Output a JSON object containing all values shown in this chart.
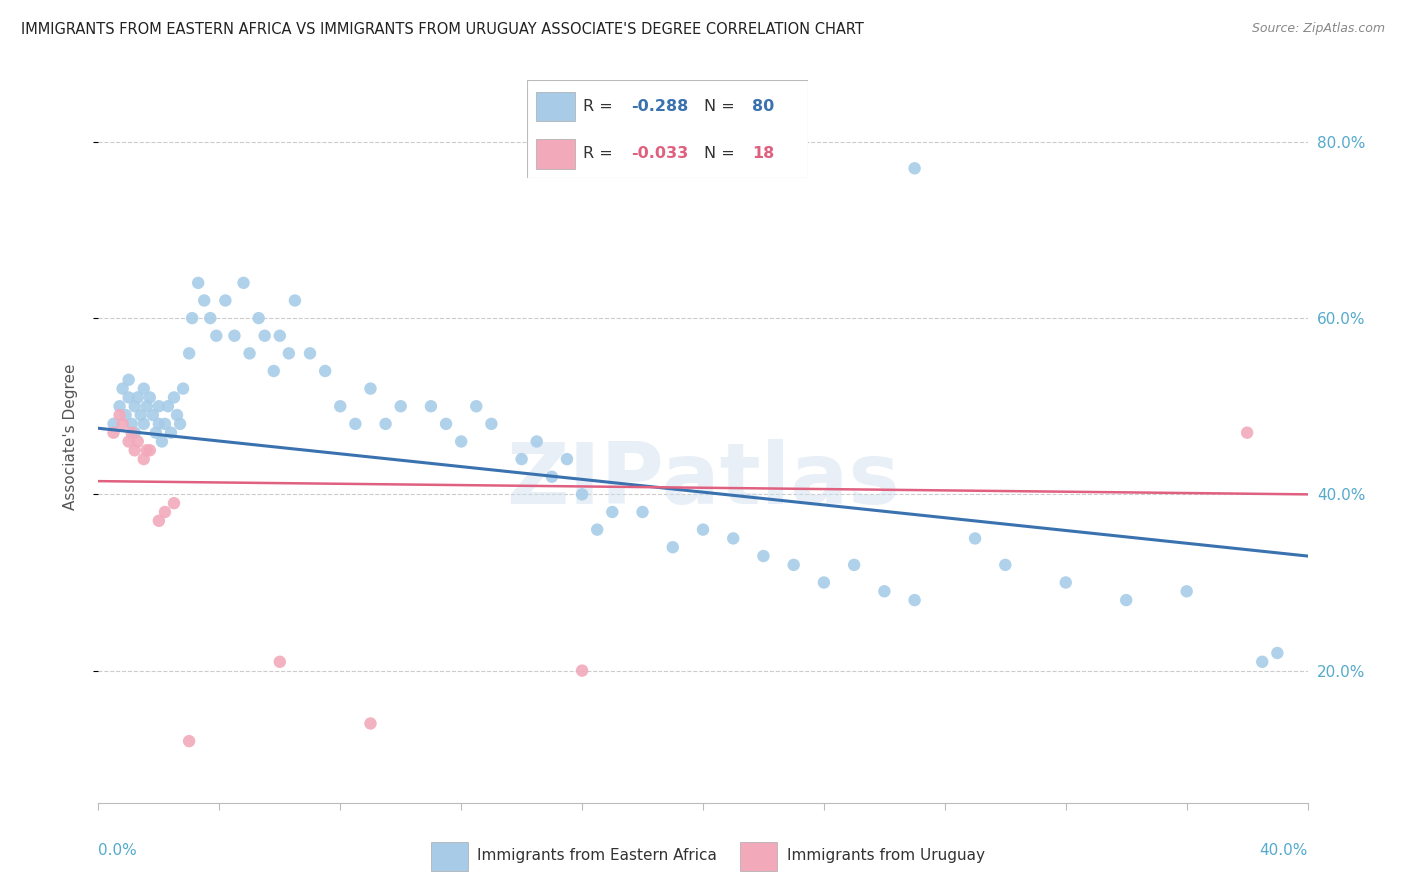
{
  "title": "IMMIGRANTS FROM EASTERN AFRICA VS IMMIGRANTS FROM URUGUAY ASSOCIATE'S DEGREE CORRELATION CHART",
  "source": "Source: ZipAtlas.com",
  "ylabel": "Associate's Degree",
  "blue_color": "#A8CCE8",
  "pink_color": "#F2AABB",
  "blue_line_color": "#3A72B0",
  "pink_line_color": "#E06080",
  "watermark": "ZIPatlas",
  "legend_blue_r_val": "-0.288",
  "legend_blue_n_val": "80",
  "legend_pink_r_val": "-0.033",
  "legend_pink_n_val": "18",
  "blue_x": [
    0.005,
    0.007,
    0.008,
    0.009,
    0.01,
    0.01,
    0.011,
    0.012,
    0.012,
    0.013,
    0.014,
    0.015,
    0.015,
    0.016,
    0.017,
    0.018,
    0.019,
    0.02,
    0.02,
    0.021,
    0.022,
    0.023,
    0.024,
    0.025,
    0.026,
    0.027,
    0.028,
    0.03,
    0.031,
    0.033,
    0.035,
    0.037,
    0.039,
    0.042,
    0.045,
    0.048,
    0.05,
    0.053,
    0.055,
    0.058,
    0.06,
    0.063,
    0.065,
    0.07,
    0.075,
    0.08,
    0.085,
    0.09,
    0.095,
    0.1,
    0.11,
    0.115,
    0.12,
    0.125,
    0.13,
    0.14,
    0.145,
    0.15,
    0.155,
    0.16,
    0.165,
    0.17,
    0.18,
    0.19,
    0.2,
    0.21,
    0.22,
    0.23,
    0.24,
    0.25,
    0.26,
    0.27,
    0.29,
    0.3,
    0.32,
    0.34,
    0.36,
    0.385,
    0.27,
    0.39
  ],
  "blue_y": [
    0.48,
    0.5,
    0.52,
    0.49,
    0.51,
    0.53,
    0.48,
    0.5,
    0.47,
    0.51,
    0.49,
    0.48,
    0.52,
    0.5,
    0.51,
    0.49,
    0.47,
    0.48,
    0.5,
    0.46,
    0.48,
    0.5,
    0.47,
    0.51,
    0.49,
    0.48,
    0.52,
    0.56,
    0.6,
    0.64,
    0.62,
    0.6,
    0.58,
    0.62,
    0.58,
    0.64,
    0.56,
    0.6,
    0.58,
    0.54,
    0.58,
    0.56,
    0.62,
    0.56,
    0.54,
    0.5,
    0.48,
    0.52,
    0.48,
    0.5,
    0.5,
    0.48,
    0.46,
    0.5,
    0.48,
    0.44,
    0.46,
    0.42,
    0.44,
    0.4,
    0.36,
    0.38,
    0.38,
    0.34,
    0.36,
    0.35,
    0.33,
    0.32,
    0.3,
    0.32,
    0.29,
    0.28,
    0.35,
    0.32,
    0.3,
    0.28,
    0.29,
    0.21,
    0.77,
    0.22
  ],
  "pink_x": [
    0.005,
    0.007,
    0.008,
    0.01,
    0.011,
    0.012,
    0.013,
    0.015,
    0.016,
    0.017,
    0.02,
    0.022,
    0.025,
    0.03,
    0.06,
    0.09,
    0.16,
    0.38
  ],
  "pink_y": [
    0.47,
    0.49,
    0.48,
    0.46,
    0.47,
    0.45,
    0.46,
    0.44,
    0.45,
    0.45,
    0.37,
    0.38,
    0.39,
    0.12,
    0.21,
    0.14,
    0.2,
    0.47
  ],
  "xlim": [
    0.0,
    0.4
  ],
  "ylim": [
    0.05,
    0.88
  ],
  "ytick_vals": [
    0.2,
    0.4,
    0.6,
    0.8
  ],
  "ytick_labels": [
    "20.0%",
    "40.0%",
    "60.0%",
    "80.0%"
  ],
  "blue_trend_x0": 0.0,
  "blue_trend_y0": 0.475,
  "blue_trend_x1": 0.4,
  "blue_trend_y1": 0.33,
  "pink_trend_x0": 0.0,
  "pink_trend_y0": 0.415,
  "pink_trend_x1": 0.4,
  "pink_trend_y1": 0.4
}
